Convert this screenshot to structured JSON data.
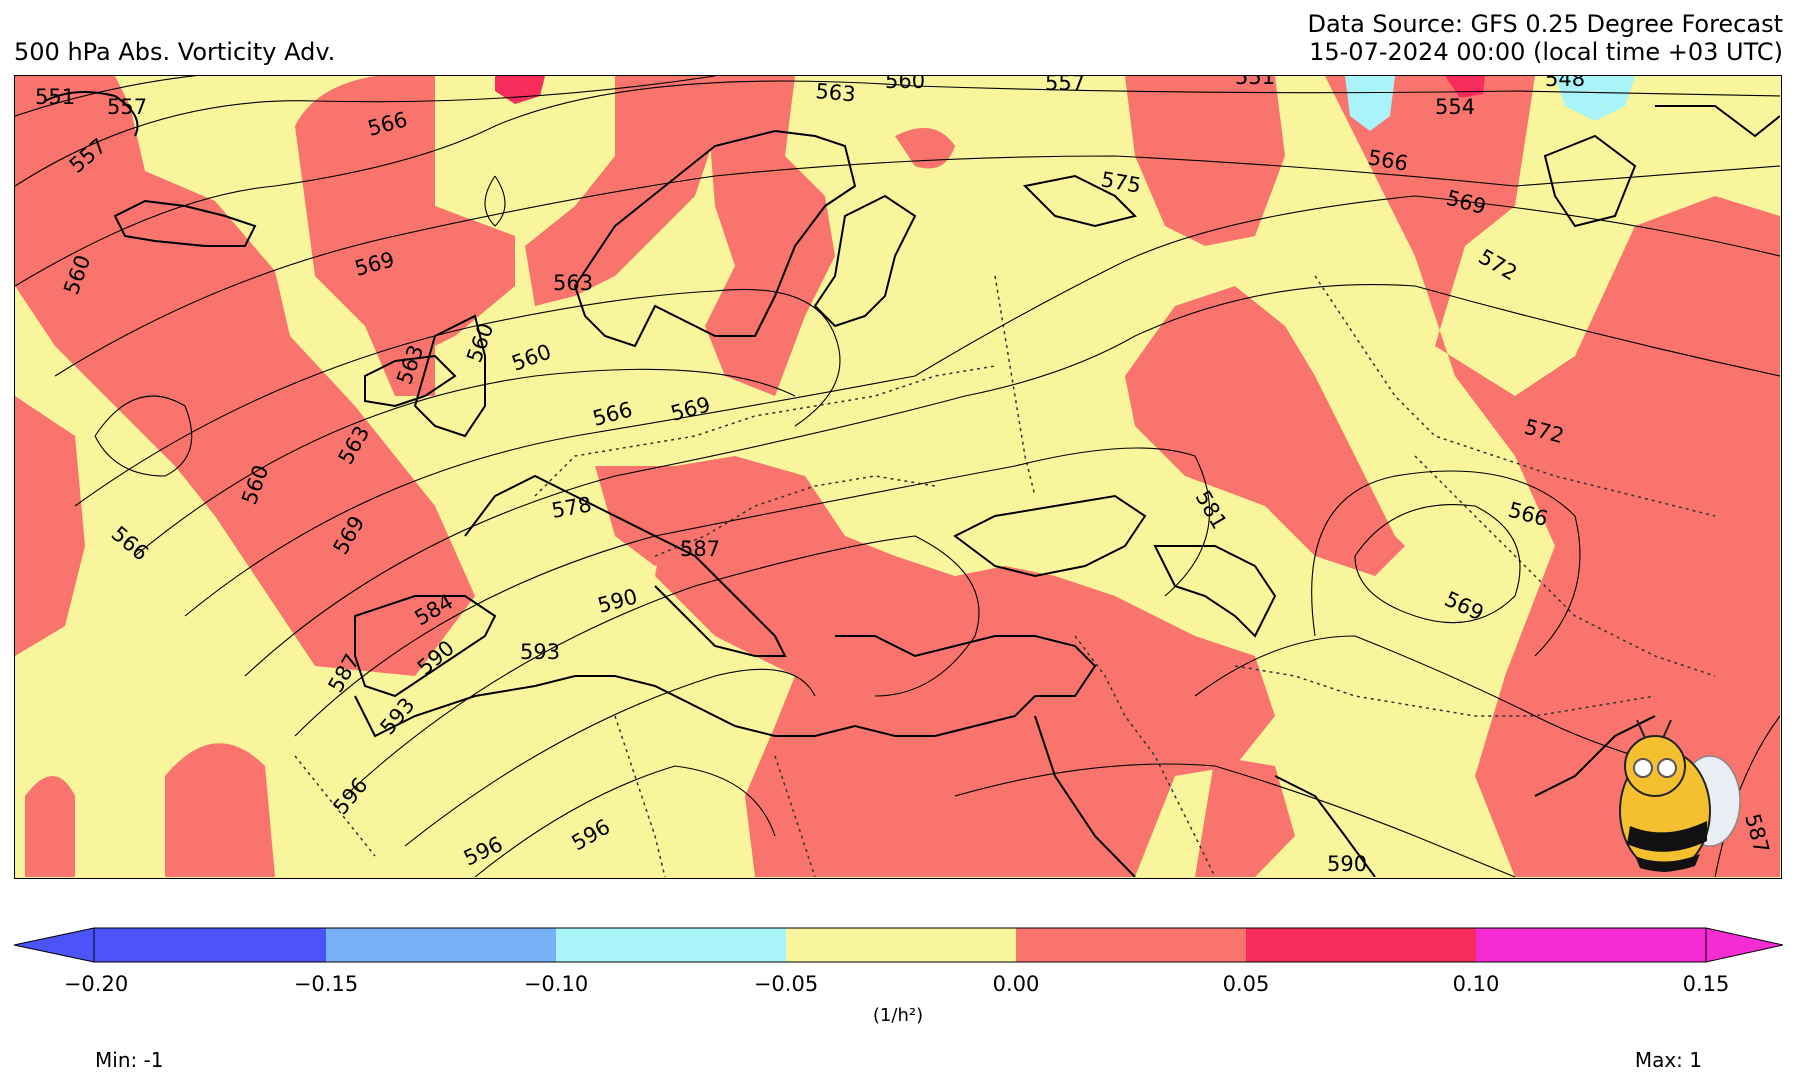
{
  "header": {
    "title": "500 hPa Abs. Vorticity Adv.",
    "source": "Data Source: GFS 0.25 Degree Forecast",
    "valid_time": "15-07-2024 00:00 (local time +03 UTC)"
  },
  "colors": {
    "yellow": "#f8f59c",
    "salmon": "#f8746c",
    "red": "#f82c5c",
    "cyan": "#a8f4f8",
    "light_blue": "#78b0f8",
    "blue": "#4c54f8",
    "magenta": "#f42cd4"
  },
  "contour_labels": [
    "551",
    "557",
    "557",
    "566",
    "560",
    "569",
    "563",
    "560",
    "560",
    "563",
    "566",
    "569",
    "569",
    "563",
    "566",
    "569",
    "572",
    "575",
    "578",
    "581",
    "584",
    "587",
    "587",
    "590",
    "590",
    "593",
    "593",
    "596",
    "596",
    "596",
    "590",
    "587",
    "563",
    "560",
    "557",
    "551",
    "554",
    "548",
    "566",
    "569",
    "572",
    "572",
    "566",
    "569",
    "581"
  ],
  "colorbar": {
    "ticks": [
      "−0.20",
      "−0.15",
      "−0.10",
      "−0.05",
      "0.00",
      "0.05",
      "0.10",
      "0.15"
    ],
    "unit": "(1/h²)",
    "bins": [
      {
        "from": -0.2,
        "to": -0.15,
        "color": "#4c54f8"
      },
      {
        "from": -0.15,
        "to": -0.1,
        "color": "#78b0f8"
      },
      {
        "from": -0.1,
        "to": -0.05,
        "color": "#a8f4f8"
      },
      {
        "from": -0.05,
        "to": 0.0,
        "color": "#f8f59c"
      },
      {
        "from": 0.0,
        "to": 0.05,
        "color": "#f8746c"
      },
      {
        "from": 0.05,
        "to": 0.1,
        "color": "#f82c5c"
      },
      {
        "from": 0.1,
        "to": 0.15,
        "color": "#f42cd4"
      }
    ]
  },
  "stats": {
    "min": "Min: -1",
    "max": "Max: 1"
  }
}
